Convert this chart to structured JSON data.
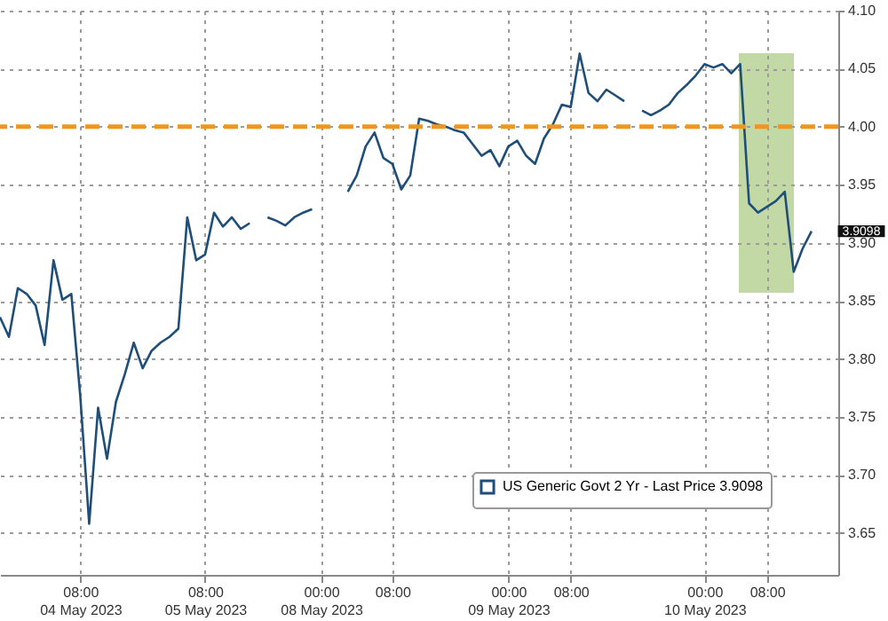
{
  "chart_data": {
    "type": "line",
    "categories": [
      null,
      null,
      null,
      null,
      null,
      null,
      null,
      null,
      null,
      "08:00\n04 May 2023",
      null,
      null,
      null,
      null,
      null,
      null,
      null,
      null,
      null,
      null,
      null,
      null,
      null,
      "08:00\n05 May 2023",
      null,
      null,
      null,
      null,
      null,
      null,
      null,
      null,
      null,
      null,
      null,
      null,
      "00:00\n08 May 2023",
      null,
      null,
      null,
      null,
      null,
      null,
      null,
      "08:00",
      null,
      null,
      null,
      null,
      null,
      null,
      null,
      null,
      null,
      null,
      null,
      null,
      "00:00\n09 May 2023",
      null,
      null,
      null,
      null,
      null,
      null,
      "08:00",
      null,
      null,
      null,
      null,
      null,
      null,
      null,
      null,
      null,
      null,
      null,
      null,
      null,
      null,
      "00:00\n10 May 2023",
      null,
      null,
      null,
      null,
      null,
      null,
      "08:00",
      null,
      null,
      null,
      null,
      null,
      null,
      null,
      null
    ],
    "series": [
      {
        "name": "US Generic Govt 2 Yr - Last Price 3.9098",
        "color": "#1f4e79",
        "values": [
          3.836,
          3.819,
          3.861,
          3.856,
          3.846,
          3.812,
          3.885,
          3.851,
          3.856,
          3.768,
          3.658,
          3.758,
          3.714,
          3.763,
          3.787,
          3.814,
          3.792,
          3.807,
          3.814,
          3.819,
          3.826,
          3.922,
          3.885,
          3.89,
          3.926,
          3.914,
          3.922,
          3.912,
          3.917,
          null,
          3.922,
          3.919,
          3.915,
          3.922,
          3.926,
          3.929,
          null,
          null,
          null,
          3.944,
          3.958,
          3.983,
          3.995,
          3.973,
          3.968,
          3.946,
          3.958,
          4.007,
          4.005,
          4.002,
          4.0,
          3.997,
          3.995,
          3.985,
          3.975,
          3.98,
          3.966,
          3.983,
          3.988,
          3.975,
          3.968,
          3.99,
          4.002,
          4.019,
          4.017,
          4.063,
          4.029,
          4.022,
          4.032,
          4.027,
          4.022,
          null,
          4.014,
          4.01,
          4.014,
          4.019,
          4.029,
          4.036,
          4.044,
          4.054,
          4.051,
          4.054,
          4.046,
          4.054,
          3.934,
          3.926,
          3.931,
          3.936,
          3.944,
          3.875,
          3.895,
          3.91,
          null,
          null,
          null
        ]
      }
    ],
    "ylim": [
      3.614,
      4.1
    ],
    "yticks": [
      {
        "value": 3.65,
        "label": "3.65"
      },
      {
        "value": 3.7,
        "label": "3.70"
      },
      {
        "value": 3.75,
        "label": "3.75"
      },
      {
        "value": 3.8,
        "label": "3.80"
      },
      {
        "value": 3.85,
        "label": "3.85"
      },
      {
        "value": 3.9,
        "label": "3.90"
      },
      {
        "value": 3.95,
        "label": "3.95"
      },
      {
        "value": 4,
        "label": "4.00"
      },
      {
        "value": 4.05,
        "label": "4.05"
      },
      {
        "value": 4.1,
        "label": "4.10"
      }
    ],
    "grid": true,
    "legend": "bottom right",
    "ref_lines": [
      {
        "axis": "y",
        "value": 4.0,
        "color": "#f0961e",
        "line_style": "dashed"
      }
    ],
    "annotations": [
      "3.9098"
    ]
  }
}
